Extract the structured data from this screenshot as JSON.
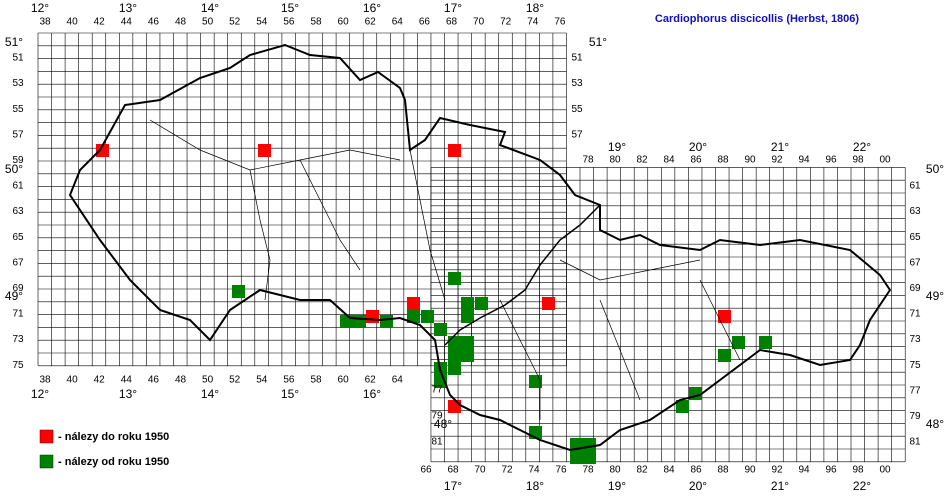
{
  "header": {
    "title": "Cardiophorus discicollis (Herbst, 1806)"
  },
  "degrees_top": [
    "12°",
    "13°",
    "14°",
    "15°",
    "16°",
    "17°",
    "18°"
  ],
  "degrees_mid": [
    "19°",
    "20°",
    "21°",
    "22°"
  ],
  "degrees_bottom_left": [
    "12°",
    "13°",
    "14°",
    "15°",
    "16°"
  ],
  "degrees_bottom_right": [
    "17°",
    "18°",
    "19°",
    "20°",
    "21°",
    "22°"
  ],
  "lat_left": [
    "51°",
    "50°",
    "49°",
    "48°"
  ],
  "lat_right": [
    "51°",
    "50°",
    "49°",
    "48°"
  ],
  "cols_top": [
    "38",
    "40",
    "42",
    "44",
    "46",
    "48",
    "50",
    "52",
    "54",
    "56",
    "58",
    "60",
    "62",
    "64",
    "66",
    "68",
    "70",
    "72",
    "74",
    "76"
  ],
  "cols_mid": [
    "78",
    "80",
    "82",
    "84",
    "86",
    "88",
    "90",
    "92",
    "94",
    "96",
    "98",
    "00"
  ],
  "cols_bottom_left": [
    "38",
    "40",
    "42",
    "44",
    "46",
    "48",
    "50",
    "52",
    "54",
    "56",
    "58",
    "60",
    "62",
    "64"
  ],
  "cols_bottom_right": [
    "66",
    "68",
    "70",
    "72",
    "74",
    "76",
    "78",
    "80",
    "82",
    "84",
    "86",
    "88",
    "90",
    "92",
    "94",
    "96",
    "98",
    "00"
  ],
  "rows_left": [
    "51",
    "53",
    "55",
    "57",
    "59",
    "61",
    "63",
    "65",
    "67",
    "69",
    "71",
    "73",
    "75"
  ],
  "rows_left_lower": [
    "77",
    "79",
    "81"
  ],
  "rows_right_upper": [
    "51",
    "53",
    "55",
    "57"
  ],
  "rows_right": [
    "61",
    "63",
    "65",
    "67",
    "69",
    "71",
    "73",
    "75",
    "77",
    "79",
    "81"
  ],
  "legend": [
    {
      "label": "- nálezy do roku 1950"
    },
    {
      "label": "- nálezy od roku 1950"
    }
  ]
}
